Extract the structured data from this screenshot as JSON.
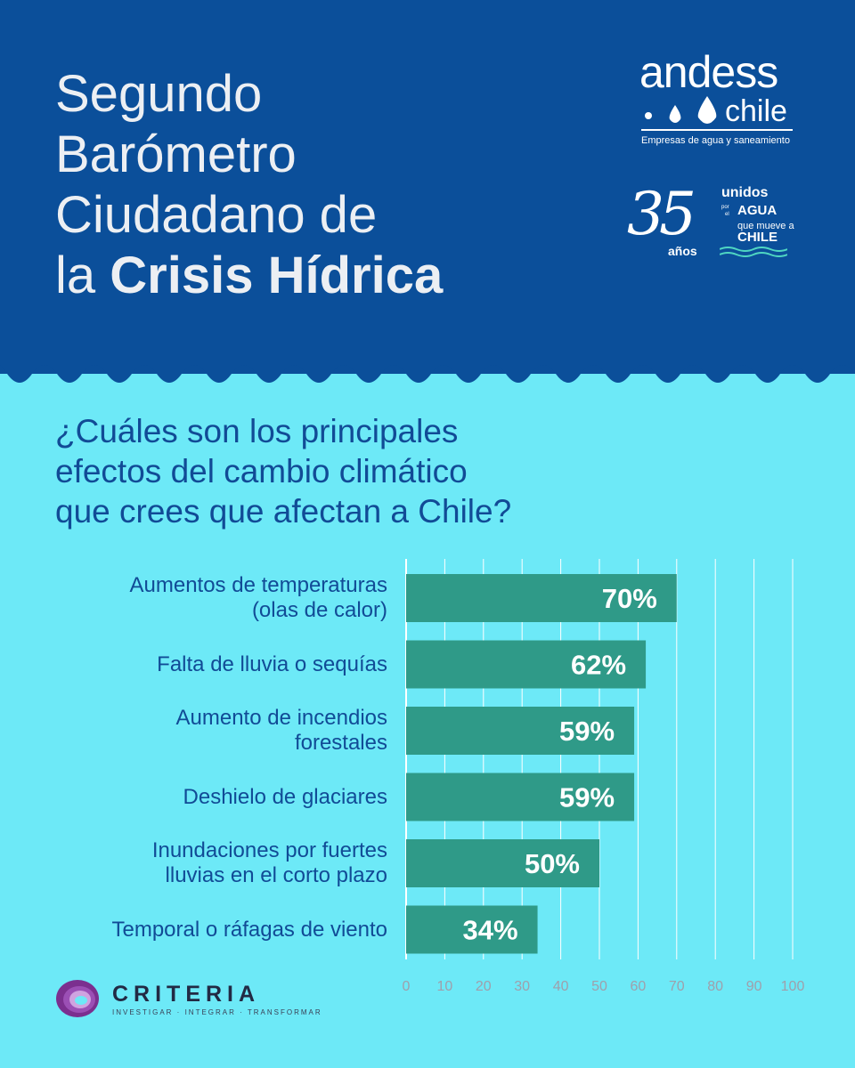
{
  "header": {
    "title_line1": "Segundo",
    "title_line2": "Barómetro",
    "title_line3": "Ciudadano de",
    "title_line4_prefix": "la ",
    "title_line4_bold": "Crisis Hídrica"
  },
  "logos": {
    "andess_word": "andess",
    "andess_chile": "chile",
    "andess_tagline": "Empresas de agua y saneamiento",
    "anniversary_number": "35",
    "anniversary_years": "años",
    "anniversary_line1": "unidos",
    "anniversary_por": "por",
    "anniversary_el": "el",
    "anniversary_agua": "AGUA",
    "anniversary_line3": "que mueve a",
    "anniversary_chile": "CHILE",
    "criteria_name": "CRITERIA",
    "criteria_tagline": "INVESTIGAR · INTEGRAR · TRANSFORMAR"
  },
  "question": {
    "line1": "¿Cuáles son los principales",
    "line2": "efectos del cambio climático",
    "line3": "que crees que afectan a Chile?"
  },
  "chart_data": {
    "type": "bar",
    "orientation": "horizontal",
    "categories": [
      [
        "Aumentos de temperaturas",
        "(olas de calor)"
      ],
      [
        "Falta de lluvia o sequías"
      ],
      [
        "Aumento de incendios",
        "forestales"
      ],
      [
        "Deshielo de glaciares"
      ],
      [
        "Inundaciones por fuertes",
        "lluvias en el corto plazo"
      ],
      [
        "Temporal o ráfagas de viento"
      ]
    ],
    "values": [
      70,
      62,
      59,
      59,
      50,
      34
    ],
    "value_labels": [
      "70%",
      "62%",
      "59%",
      "59%",
      "50%",
      "34%"
    ],
    "xlim": [
      0,
      100
    ],
    "xticks": [
      "0",
      "10",
      "20",
      "30",
      "40",
      "50",
      "60",
      "70",
      "80",
      "90",
      "100"
    ],
    "grid": true,
    "bar_color": "#2f9a88",
    "label_color": "#ffffff",
    "grid_color": "#ffffff"
  },
  "colors": {
    "header_bg": "#0b4f9a",
    "body_bg": "#6de9f7",
    "title_text": "#eceff3",
    "question_text": "#114b96"
  }
}
